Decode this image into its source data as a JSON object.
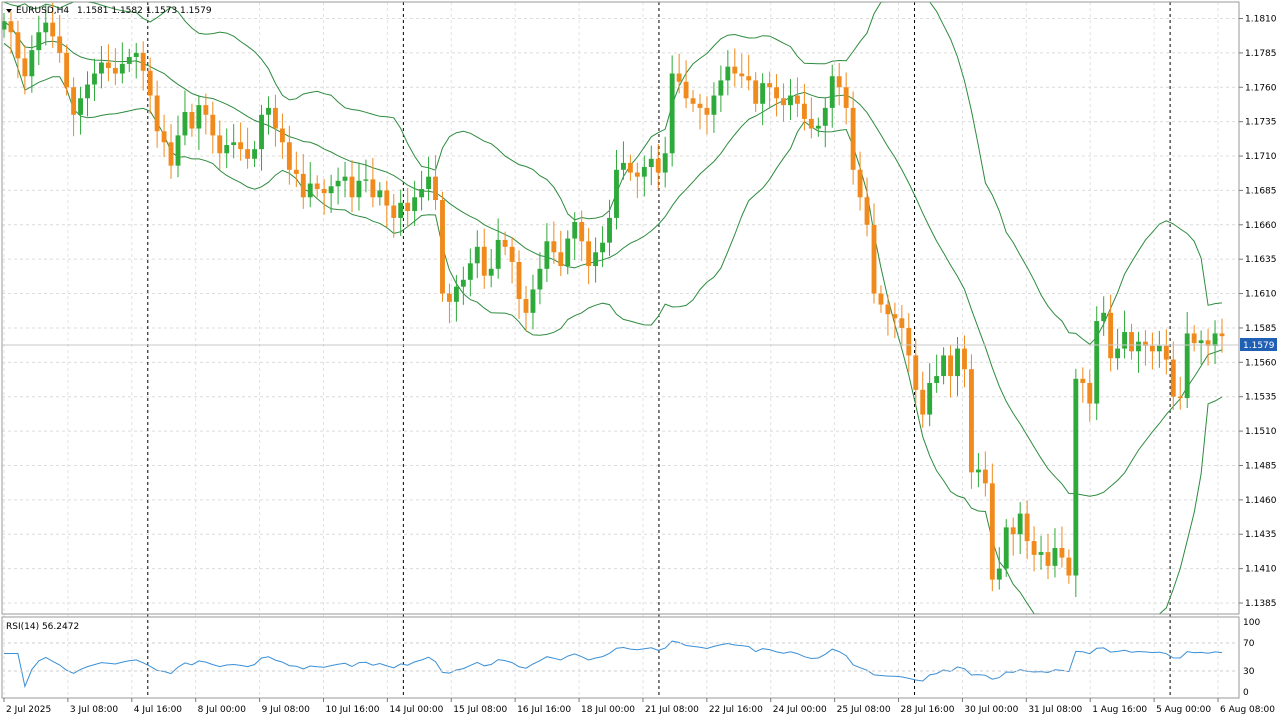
{
  "main_chart": {
    "symbol": "EURUSD,H4",
    "ohlc_text": "1.1581 1.1582 1.1573 1.1579",
    "current_price": 1.1579,
    "current_price_label": "1.1579",
    "y_range": [
      1.1377,
      1.1822
    ],
    "price_labels": [
      "1.1810",
      "1.1785",
      "1.1760",
      "1.1735",
      "1.1710",
      "1.1685",
      "1.1660",
      "1.1635",
      "1.1610",
      "1.1585",
      "1.1560",
      "1.1535",
      "1.1510",
      "1.1485",
      "1.1460",
      "1.1435",
      "1.1410",
      "1.1385"
    ]
  },
  "rsi_panel": {
    "title": "RSI(14) 56.2472",
    "levels": [
      "100",
      "70",
      "30",
      "0"
    ]
  },
  "time_labels": [
    "2 Jul 2025",
    "3 Jul 08:00",
    "4 Jul 16:00",
    "8 Jul 00:00",
    "9 Jul 08:00",
    "10 Jul 16:00",
    "14 Jul 00:00",
    "15 Jul 08:00",
    "16 Jul 16:00",
    "18 Jul 00:00",
    "21 Jul 08:00",
    "22 Jul 16:00",
    "24 Jul 00:00",
    "25 Jul 08:00",
    "28 Jul 16:00",
    "30 Jul 00:00",
    "31 Jul 08:00",
    "1 Aug 16:00",
    "5 Aug 00:00",
    "6 Aug 08:00"
  ],
  "colors": {
    "bull": "#2eaa3a",
    "bear": "#f08a1c",
    "band": "#2e8b3e",
    "rsi": "#3a8fd6",
    "badge": "#1f5fb4"
  },
  "chart_data": {
    "type": "candlestick",
    "symbol": "EURUSD",
    "timeframe": "H4",
    "last_close": 1.1579,
    "rsi_last": 56.2472,
    "series": [
      {
        "name": "close",
        "values": [
          1.1808,
          1.18,
          1.1781,
          1.1768,
          1.1787,
          1.18,
          1.1807,
          1.1797,
          1.1785,
          1.176,
          1.174,
          1.1752,
          1.1762,
          1.177,
          1.1778,
          1.1774,
          1.177,
          1.1777,
          1.1782,
          1.1785,
          1.1772,
          1.1754,
          1.1728,
          1.172,
          1.1703,
          1.1725,
          1.1742,
          1.173,
          1.1747,
          1.174,
          1.1725,
          1.1712,
          1.1718,
          1.172,
          1.1715,
          1.1708,
          1.1715,
          1.174,
          1.1745,
          1.173,
          1.172,
          1.17,
          1.1697,
          1.168,
          1.169,
          1.1686,
          1.1683,
          1.1688,
          1.1692,
          1.1695,
          1.168,
          1.1692,
          1.1693,
          1.168,
          1.1685,
          1.1674,
          1.1665,
          1.1676,
          1.167,
          1.168,
          1.1686,
          1.1695,
          1.1678,
          1.161,
          1.1604,
          1.1615,
          1.162,
          1.1632,
          1.1644,
          1.1623,
          1.1628,
          1.1649,
          1.1644,
          1.1633,
          1.1606,
          1.1596,
          1.1613,
          1.1628,
          1.1648,
          1.164,
          1.163,
          1.165,
          1.1662,
          1.1648,
          1.163,
          1.164,
          1.1647,
          1.1665,
          1.17,
          1.1705,
          1.1698,
          1.1695,
          1.1702,
          1.1708,
          1.1698,
          1.1712,
          1.177,
          1.1764,
          1.1752,
          1.1748,
          1.1745,
          1.174,
          1.1754,
          1.1765,
          1.1775,
          1.177,
          1.1768,
          1.1765,
          1.1748,
          1.1763,
          1.176,
          1.1752,
          1.1747,
          1.1754,
          1.1748,
          1.1737,
          1.173,
          1.1732,
          1.1745,
          1.1768,
          1.176,
          1.1745,
          1.17,
          1.168,
          1.166,
          1.161,
          1.1602,
          1.1595,
          1.1592,
          1.1585,
          1.1565,
          1.154,
          1.1522,
          1.1545,
          1.155,
          1.1565,
          1.155,
          1.157,
          1.1555,
          1.148,
          1.1482,
          1.1472,
          1.1402,
          1.141,
          1.144,
          1.1435,
          1.145,
          1.143,
          1.142,
          1.1422,
          1.1412,
          1.1425,
          1.1418,
          1.1405,
          1.1548,
          1.1545,
          1.153,
          1.159,
          1.1596,
          1.1563,
          1.157,
          1.1582,
          1.1568,
          1.1575,
          1.1572,
          1.1568,
          1.1572,
          1.1562,
          1.1535,
          1.1534,
          1.1581,
          1.1574,
          1.1576,
          1.1572,
          1.1581,
          1.1579
        ]
      }
    ]
  }
}
